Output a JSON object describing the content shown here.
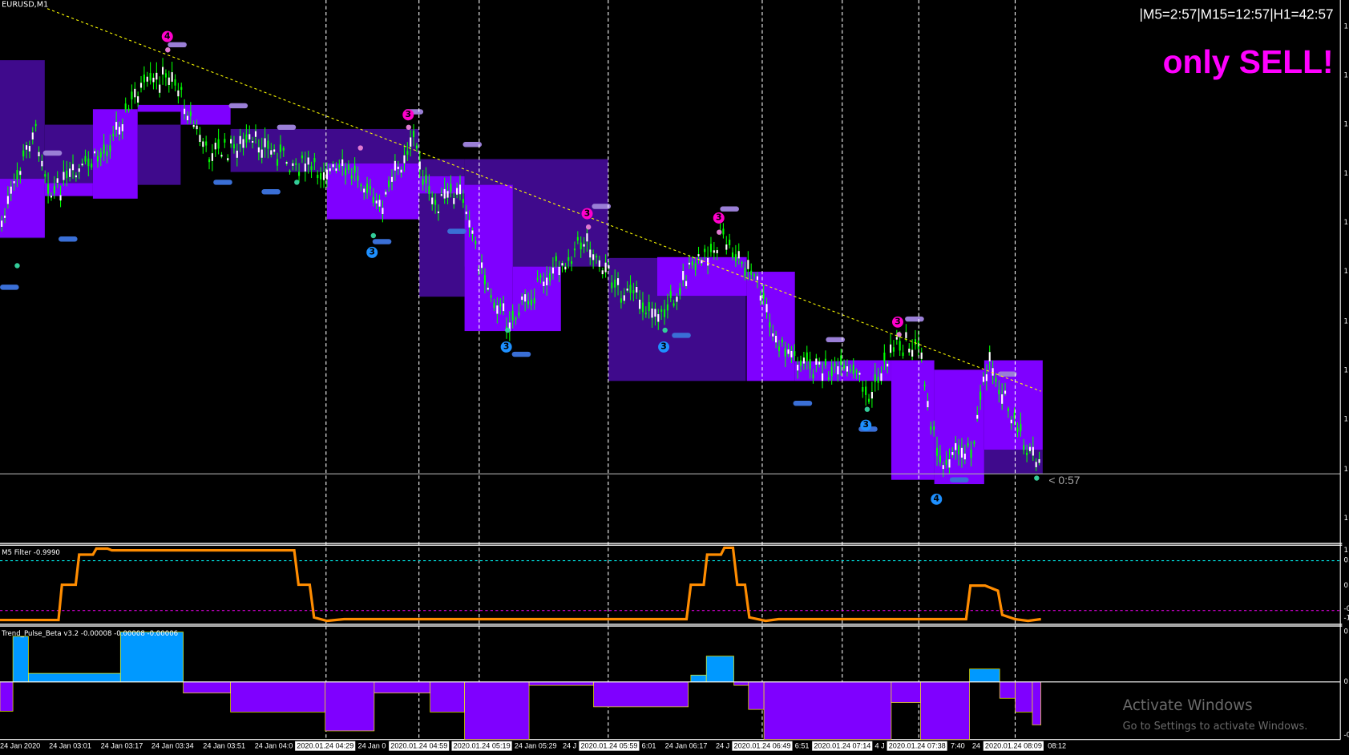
{
  "chart": {
    "symbol": "EURUSD,M1",
    "timers": "|M5=2:57|M15=12:57|H1=42:57",
    "signal": "only SELL!",
    "countdown": "< 0:57",
    "sell_markers": [
      "4",
      "3",
      "3",
      "3",
      "3"
    ],
    "buy_markers": [
      "3",
      "3",
      "3",
      "3",
      "4"
    ],
    "colors": {
      "bull_candle": "#00ff00",
      "box_bright": "#7f00ff",
      "box_dark": "#3f0a8c",
      "trendline": "#ffff00",
      "sell_marker": "#ff00cc",
      "buy_marker": "#1e90ff"
    }
  },
  "m5_filter": {
    "label": "M5 Filter -0.9990",
    "line_color": "#ff8c00"
  },
  "trend_pulse": {
    "label": "Trend_Pulse_Beta v3.2 -0.00008 -0.00008 -0.00006",
    "up_color": "#0099ff",
    "down_color": "#7f00ff"
  },
  "price_axis": {
    "main": [
      "1",
      "1",
      "1",
      "1",
      "1",
      "1",
      "1",
      "1",
      "1",
      "1",
      "1"
    ],
    "m5": [
      "1",
      "0.",
      "0",
      "-0",
      "-1"
    ],
    "pulse": [
      "0",
      "0",
      "-0"
    ]
  },
  "time_axis": [
    {
      "t": "24 Jan 2020",
      "hl": false
    },
    {
      "t": "24 Jan 03:01",
      "hl": false
    },
    {
      "t": "24 Jan 03:17",
      "hl": false
    },
    {
      "t": "24 Jan 03:34",
      "hl": false
    },
    {
      "t": "24 Jan 03:51",
      "hl": false
    },
    {
      "t": "24 Jan 04:0",
      "hl": false
    },
    {
      "t": "2020.01.24 04:29",
      "hl": true
    },
    {
      "t": "24 Jan 0",
      "hl": false
    },
    {
      "t": "2020.01.24 04:59",
      "hl": true
    },
    {
      "t": "2020.01.24 05:19",
      "hl": true
    },
    {
      "t": "24 Jan 05:29",
      "hl": false
    },
    {
      "t": "24 J",
      "hl": false
    },
    {
      "t": "2020.01.24 05:59",
      "hl": true
    },
    {
      "t": "6:01",
      "hl": false
    },
    {
      "t": "24 Jan 06:17",
      "hl": false
    },
    {
      "t": "24 J",
      "hl": false
    },
    {
      "t": "2020.01.24 06:49",
      "hl": true
    },
    {
      "t": "6:51",
      "hl": false
    },
    {
      "t": "2020.01.24 07:14",
      "hl": true
    },
    {
      "t": "4 J",
      "hl": false
    },
    {
      "t": "2020.01.24 07:38",
      "hl": true
    },
    {
      "t": "7:40",
      "hl": false
    },
    {
      "t": "24",
      "hl": false
    },
    {
      "t": "2020.01.24 08:09",
      "hl": true
    },
    {
      "t": "08:12",
      "hl": false
    }
  ],
  "watermark": {
    "title": "Activate Windows",
    "subtitle": "Go to Settings to activate Windows."
  }
}
